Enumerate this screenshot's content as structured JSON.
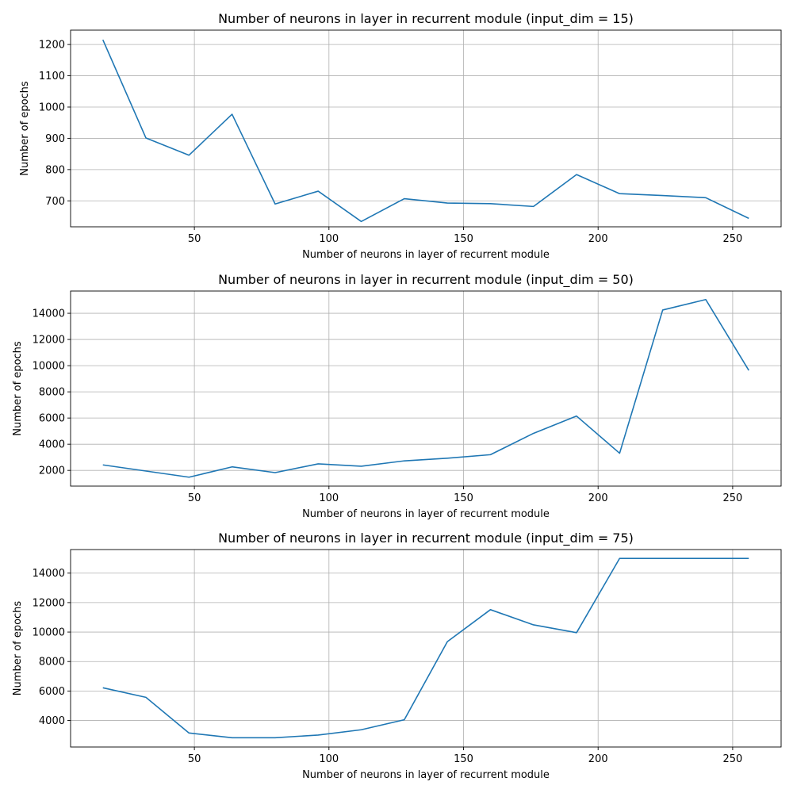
{
  "chart_data": [
    {
      "type": "line",
      "title": "Number of neurons in layer in recurrent module (input_dim = 15)",
      "xlabel": "Number of neurons in layer of recurrent module",
      "ylabel": "Number of epochs",
      "grid": true,
      "line_color": "#1f77b4",
      "xlim": [
        4,
        268
      ],
      "ylim": [
        617,
        1246
      ],
      "xticks": [
        50,
        100,
        150,
        200,
        250
      ],
      "yticks": [
        700,
        800,
        900,
        1000,
        1100,
        1200
      ],
      "x": [
        16,
        32,
        48,
        64,
        80,
        96,
        112,
        128,
        144,
        160,
        176,
        192,
        208,
        224,
        240,
        256
      ],
      "series": [
        {
          "values": [
            1215,
            901,
            846,
            977,
            690,
            731,
            634,
            707,
            693,
            691,
            682,
            784,
            723,
            717,
            710,
            644
          ]
        }
      ]
    },
    {
      "type": "line",
      "title": "Number of neurons in layer in recurrent module (input_dim = 50)",
      "xlabel": "Number of neurons in layer of recurrent module",
      "ylabel": "Number of epochs",
      "grid": true,
      "line_color": "#1f77b4",
      "xlim": [
        4,
        268
      ],
      "ylim": [
        800,
        15700
      ],
      "xticks": [
        50,
        100,
        150,
        200,
        250
      ],
      "yticks": [
        2000,
        4000,
        6000,
        8000,
        10000,
        12000,
        14000
      ],
      "x": [
        16,
        32,
        48,
        64,
        80,
        96,
        112,
        128,
        144,
        160,
        176,
        192,
        208,
        224,
        240,
        256
      ],
      "series": [
        {
          "values": [
            2420,
            1950,
            1480,
            2270,
            1830,
            2500,
            2320,
            2730,
            2930,
            3200,
            4830,
            6150,
            3310,
            14250,
            15050,
            9640
          ]
        }
      ]
    },
    {
      "type": "line",
      "title": "Number of neurons in layer in recurrent module (input_dim = 75)",
      "xlabel": "Number of neurons in layer of recurrent module",
      "ylabel": "Number of epochs",
      "grid": true,
      "line_color": "#1f77b4",
      "xlim": [
        4,
        268
      ],
      "ylim": [
        2200,
        15600
      ],
      "xticks": [
        50,
        100,
        150,
        200,
        250
      ],
      "yticks": [
        4000,
        6000,
        8000,
        10000,
        12000,
        14000
      ],
      "x": [
        16,
        32,
        48,
        64,
        80,
        96,
        112,
        128,
        144,
        160,
        176,
        192,
        208,
        224,
        240,
        256
      ],
      "series": [
        {
          "values": [
            6220,
            5570,
            3150,
            2830,
            2830,
            3010,
            3370,
            4050,
            9350,
            11520,
            10490,
            9960,
            15000,
            15000,
            15000,
            15000
          ]
        }
      ]
    }
  ]
}
